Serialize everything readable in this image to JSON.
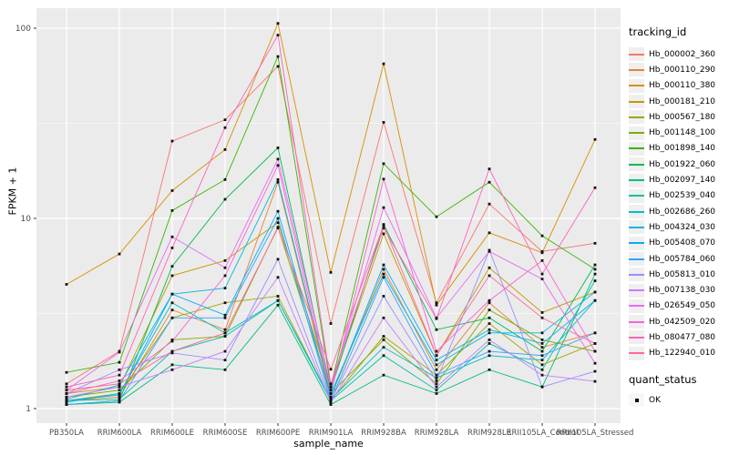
{
  "chart_data": {
    "type": "line",
    "title": "",
    "xlabel": "sample_name",
    "ylabel": "FPKM + 1",
    "y_scale": "log10",
    "y_ticks": [
      1,
      10,
      100
    ],
    "ylim": [
      0.84,
      126
    ],
    "grid": true,
    "panel_bg": "#EBEBEB",
    "marker": "black-square",
    "legend": {
      "title": "tracking_id",
      "position": "right"
    },
    "quant_status": {
      "title": "quant_status",
      "items": [
        "OK"
      ]
    },
    "categories": [
      "PB350LA",
      "RRIM600LA",
      "RRIM600LE",
      "RRIM600SE",
      "RRIM600PE",
      "RRIM901LA",
      "RRIM928BA",
      "RRIM928LA",
      "RRIM928LE",
      "RRII105LA_Control",
      "RRII105LA_Stressed"
    ],
    "series": [
      {
        "name": "Hb_000002_360",
        "color": "#F8766D",
        "values": [
          1.35,
          2.0,
          25.5,
          33,
          63,
          2.8,
          32,
          3.6,
          11.9,
          6.7,
          7.4
        ]
      },
      {
        "name": "Hb_000110_290",
        "color": "#EA8331",
        "values": [
          1.1,
          1.15,
          3.3,
          2.6,
          15.5,
          1.15,
          5.4,
          1.6,
          3.6,
          2.1,
          2.5
        ]
      },
      {
        "name": "Hb_000110_380",
        "color": "#D89000",
        "values": [
          4.5,
          6.5,
          14,
          23,
          106,
          5.2,
          65,
          3.5,
          8.4,
          6.6,
          26
        ]
      },
      {
        "name": "Hb_000181_210",
        "color": "#C09B00",
        "values": [
          1.2,
          1.3,
          5.0,
          6.0,
          9.5,
          1.3,
          8.3,
          1.9,
          5.5,
          3.2,
          4.1
        ]
      },
      {
        "name": "Hb_000567_180",
        "color": "#A3A500",
        "values": [
          1.1,
          1.2,
          3.0,
          3.6,
          3.9,
          1.1,
          2.4,
          1.5,
          2.8,
          1.7,
          2.2
        ]
      },
      {
        "name": "Hb_001148_100",
        "color": "#7CAE00",
        "values": [
          1.15,
          1.25,
          2.3,
          2.4,
          9.0,
          1.2,
          2.3,
          1.35,
          3.3,
          2.3,
          2.0
        ]
      },
      {
        "name": "Hb_001898_140",
        "color": "#39B600",
        "values": [
          1.55,
          1.75,
          11,
          16,
          71,
          1.3,
          19.4,
          10.2,
          15.5,
          8.1,
          5.4
        ]
      },
      {
        "name": "Hb_001922_060",
        "color": "#00BB4E",
        "values": [
          1.05,
          1.1,
          5.6,
          12.6,
          23.5,
          1.25,
          9.3,
          2.6,
          3.0,
          2.0,
          5.7
        ]
      },
      {
        "name": "Hb_002097_140",
        "color": "#00BF7D",
        "values": [
          1.05,
          1.08,
          1.7,
          1.6,
          3.5,
          1.05,
          1.5,
          1.2,
          1.6,
          1.3,
          5.1
        ]
      },
      {
        "name": "Hb_002539_040",
        "color": "#00C1A3",
        "values": [
          1.1,
          1.12,
          2.0,
          2.4,
          3.7,
          1.1,
          1.9,
          1.25,
          2.2,
          1.6,
          4.7
        ]
      },
      {
        "name": "Hb_002686_260",
        "color": "#00BFC4",
        "values": [
          1.08,
          1.2,
          3.6,
          2.5,
          3.7,
          1.12,
          2.1,
          1.45,
          1.9,
          1.8,
          3.7
        ]
      },
      {
        "name": "Hb_004324_030",
        "color": "#00BAE0",
        "values": [
          1.12,
          1.33,
          4.0,
          4.3,
          16,
          1.2,
          5.1,
          1.7,
          2.5,
          2.5,
          4.1
        ]
      },
      {
        "name": "Hb_005408_070",
        "color": "#00B0F6",
        "values": [
          1.1,
          1.18,
          4.0,
          3.1,
          10.9,
          1.15,
          5.7,
          1.8,
          2.6,
          2.2,
          3.7
        ]
      },
      {
        "name": "Hb_005784_060",
        "color": "#35A2FF",
        "values": [
          1.05,
          1.1,
          3.0,
          3.0,
          10.0,
          1.1,
          4.9,
          1.5,
          2.0,
          1.9,
          2.5
        ]
      },
      {
        "name": "Hb_005813_010",
        "color": "#9590FF",
        "values": [
          1.2,
          1.6,
          1.96,
          1.8,
          6.1,
          1.1,
          3.9,
          1.4,
          6.8,
          1.3,
          1.57
        ]
      },
      {
        "name": "Hb_007138_030",
        "color": "#C77CFF",
        "values": [
          1.15,
          1.3,
          1.6,
          2.0,
          4.9,
          1.08,
          3.0,
          1.3,
          2.3,
          1.5,
          1.39
        ]
      },
      {
        "name": "Hb_026549_050",
        "color": "#E76BF3",
        "values": [
          1.25,
          1.98,
          8.0,
          5.5,
          20.5,
          1.3,
          11.4,
          3.0,
          6.7,
          4.8,
          1.73
        ]
      },
      {
        "name": "Hb_042509_020",
        "color": "#FA62DB",
        "values": [
          1.2,
          1.4,
          2.26,
          5.0,
          19,
          1.2,
          16.1,
          2.0,
          3.7,
          6.0,
          2.0
        ]
      },
      {
        "name": "Hb_080477_080",
        "color": "#FF62BC",
        "values": [
          1.3,
          1.5,
          7.0,
          30,
          92,
          1.35,
          8.9,
          2.97,
          18.2,
          5.1,
          14.5
        ]
      },
      {
        "name": "Hb_122940_010",
        "color": "#FF6A98",
        "values": [
          1.25,
          1.35,
          2.0,
          2.5,
          8.9,
          1.61,
          9.2,
          1.9,
          5.0,
          3.0,
          2.2
        ]
      }
    ]
  }
}
